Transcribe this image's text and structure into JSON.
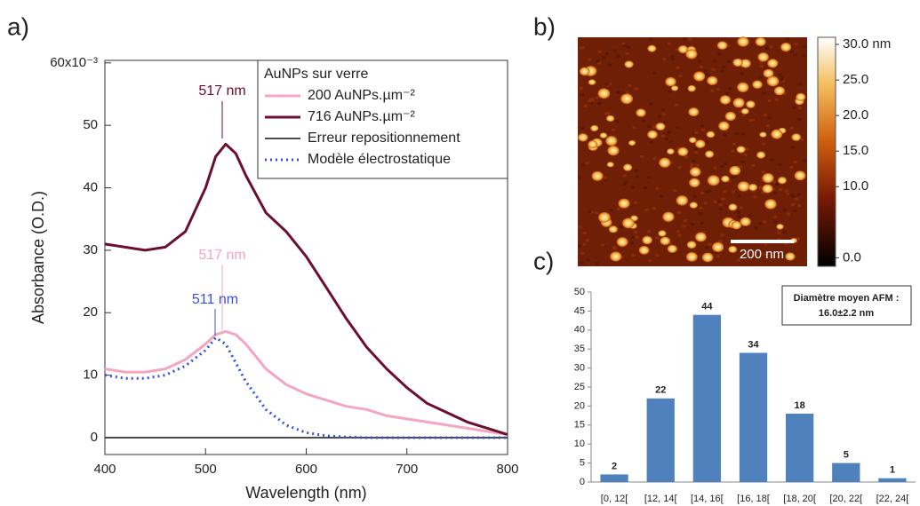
{
  "chart_data": [
    {
      "type": "line",
      "title": "a)",
      "x_label": "Wavelength (nm)",
      "y_label": "Absorbance (O.D.)",
      "legend_title": "AuNPs sur verre",
      "legend": "top-right",
      "x": [
        400,
        420,
        440,
        460,
        480,
        500,
        510,
        520,
        530,
        540,
        560,
        580,
        600,
        620,
        640,
        660,
        680,
        700,
        720,
        740,
        760,
        780,
        800
      ],
      "series": [
        {
          "name": "200 AuNPs.µm⁻²",
          "color": "#f4a6c0",
          "dash": "solid",
          "width": 3,
          "values": [
            11,
            10.5,
            10.5,
            11,
            12.5,
            15,
            16.5,
            17,
            16.5,
            15,
            11,
            8.5,
            7,
            6,
            5,
            4.5,
            3.5,
            3,
            2.5,
            2,
            1.5,
            1,
            0.5
          ]
        },
        {
          "name": "716 AuNPs.µm⁻²",
          "color": "#6b0f2a",
          "dash": "solid",
          "width": 3,
          "values": [
            31,
            30.5,
            30,
            30.5,
            33,
            40,
            45,
            47,
            45.5,
            42,
            36,
            33,
            29,
            24,
            19,
            14.5,
            11,
            8,
            5.5,
            4,
            2.5,
            1.5,
            0.5
          ]
        },
        {
          "name": "Erreur repositionnement",
          "color": "#111111",
          "dash": "solid",
          "width": 1.5,
          "values": [
            0,
            0,
            0,
            0,
            0,
            0,
            0,
            0,
            0,
            0,
            0,
            0,
            0,
            0,
            0,
            0,
            0,
            0,
            0,
            0,
            0,
            0,
            0
          ]
        },
        {
          "name": "Modèle électrostatique",
          "color": "#3a50e0",
          "dash": "dotted",
          "width": 3,
          "values": [
            10,
            9.5,
            9.5,
            10,
            11.5,
            14,
            16,
            15,
            12,
            9,
            4.5,
            2,
            0.8,
            0.3,
            0.1,
            0,
            0,
            0,
            0,
            0,
            0,
            0,
            0
          ]
        }
      ],
      "annotations": [
        {
          "text": "517 nm",
          "color": "#6b0f2a"
        },
        {
          "text": "517 nm",
          "color": "#f4a6c0"
        },
        {
          "text": "511 nm",
          "color": "#3a50e0"
        }
      ],
      "xlim": [
        400,
        800
      ],
      "xticks": [
        400,
        500,
        600,
        700,
        800
      ],
      "ylim": [
        -2.7,
        60.4
      ],
      "yticks": [
        0,
        10,
        20,
        30,
        40,
        50,
        {
          "value": 60,
          "label": "60x10⁻³"
        }
      ]
    },
    {
      "type": "image",
      "title": "b)",
      "scale_bar_label": "200 nm",
      "clim": [
        -1.2,
        31
      ],
      "cticks": [
        {
          "value": 0,
          "label": "0.0"
        },
        {
          "value": 10,
          "label": "10.0"
        },
        {
          "value": 15,
          "label": "15.0"
        },
        {
          "value": 20,
          "label": "20.0"
        },
        {
          "value": 25,
          "label": "25.0"
        },
        {
          "value": 30,
          "label": "30.0 nm"
        }
      ]
    },
    {
      "type": "bar",
      "title": "c)",
      "color": "#4f81bd",
      "categories": [
        "[0, 12[",
        "[12, 14[",
        "[14, 16[",
        "[16, 18[",
        "[18, 20[",
        "[20, 22[",
        "[22, 24["
      ],
      "values": [
        2,
        22,
        44,
        34,
        18,
        5,
        1
      ],
      "annotation": [
        "Diamètre moyen AFM :",
        "16.0±2.2 nm"
      ],
      "ylim": [
        0,
        50
      ],
      "yticks": [
        0,
        5,
        10,
        15,
        20,
        25,
        30,
        35,
        40,
        45,
        50
      ]
    }
  ]
}
